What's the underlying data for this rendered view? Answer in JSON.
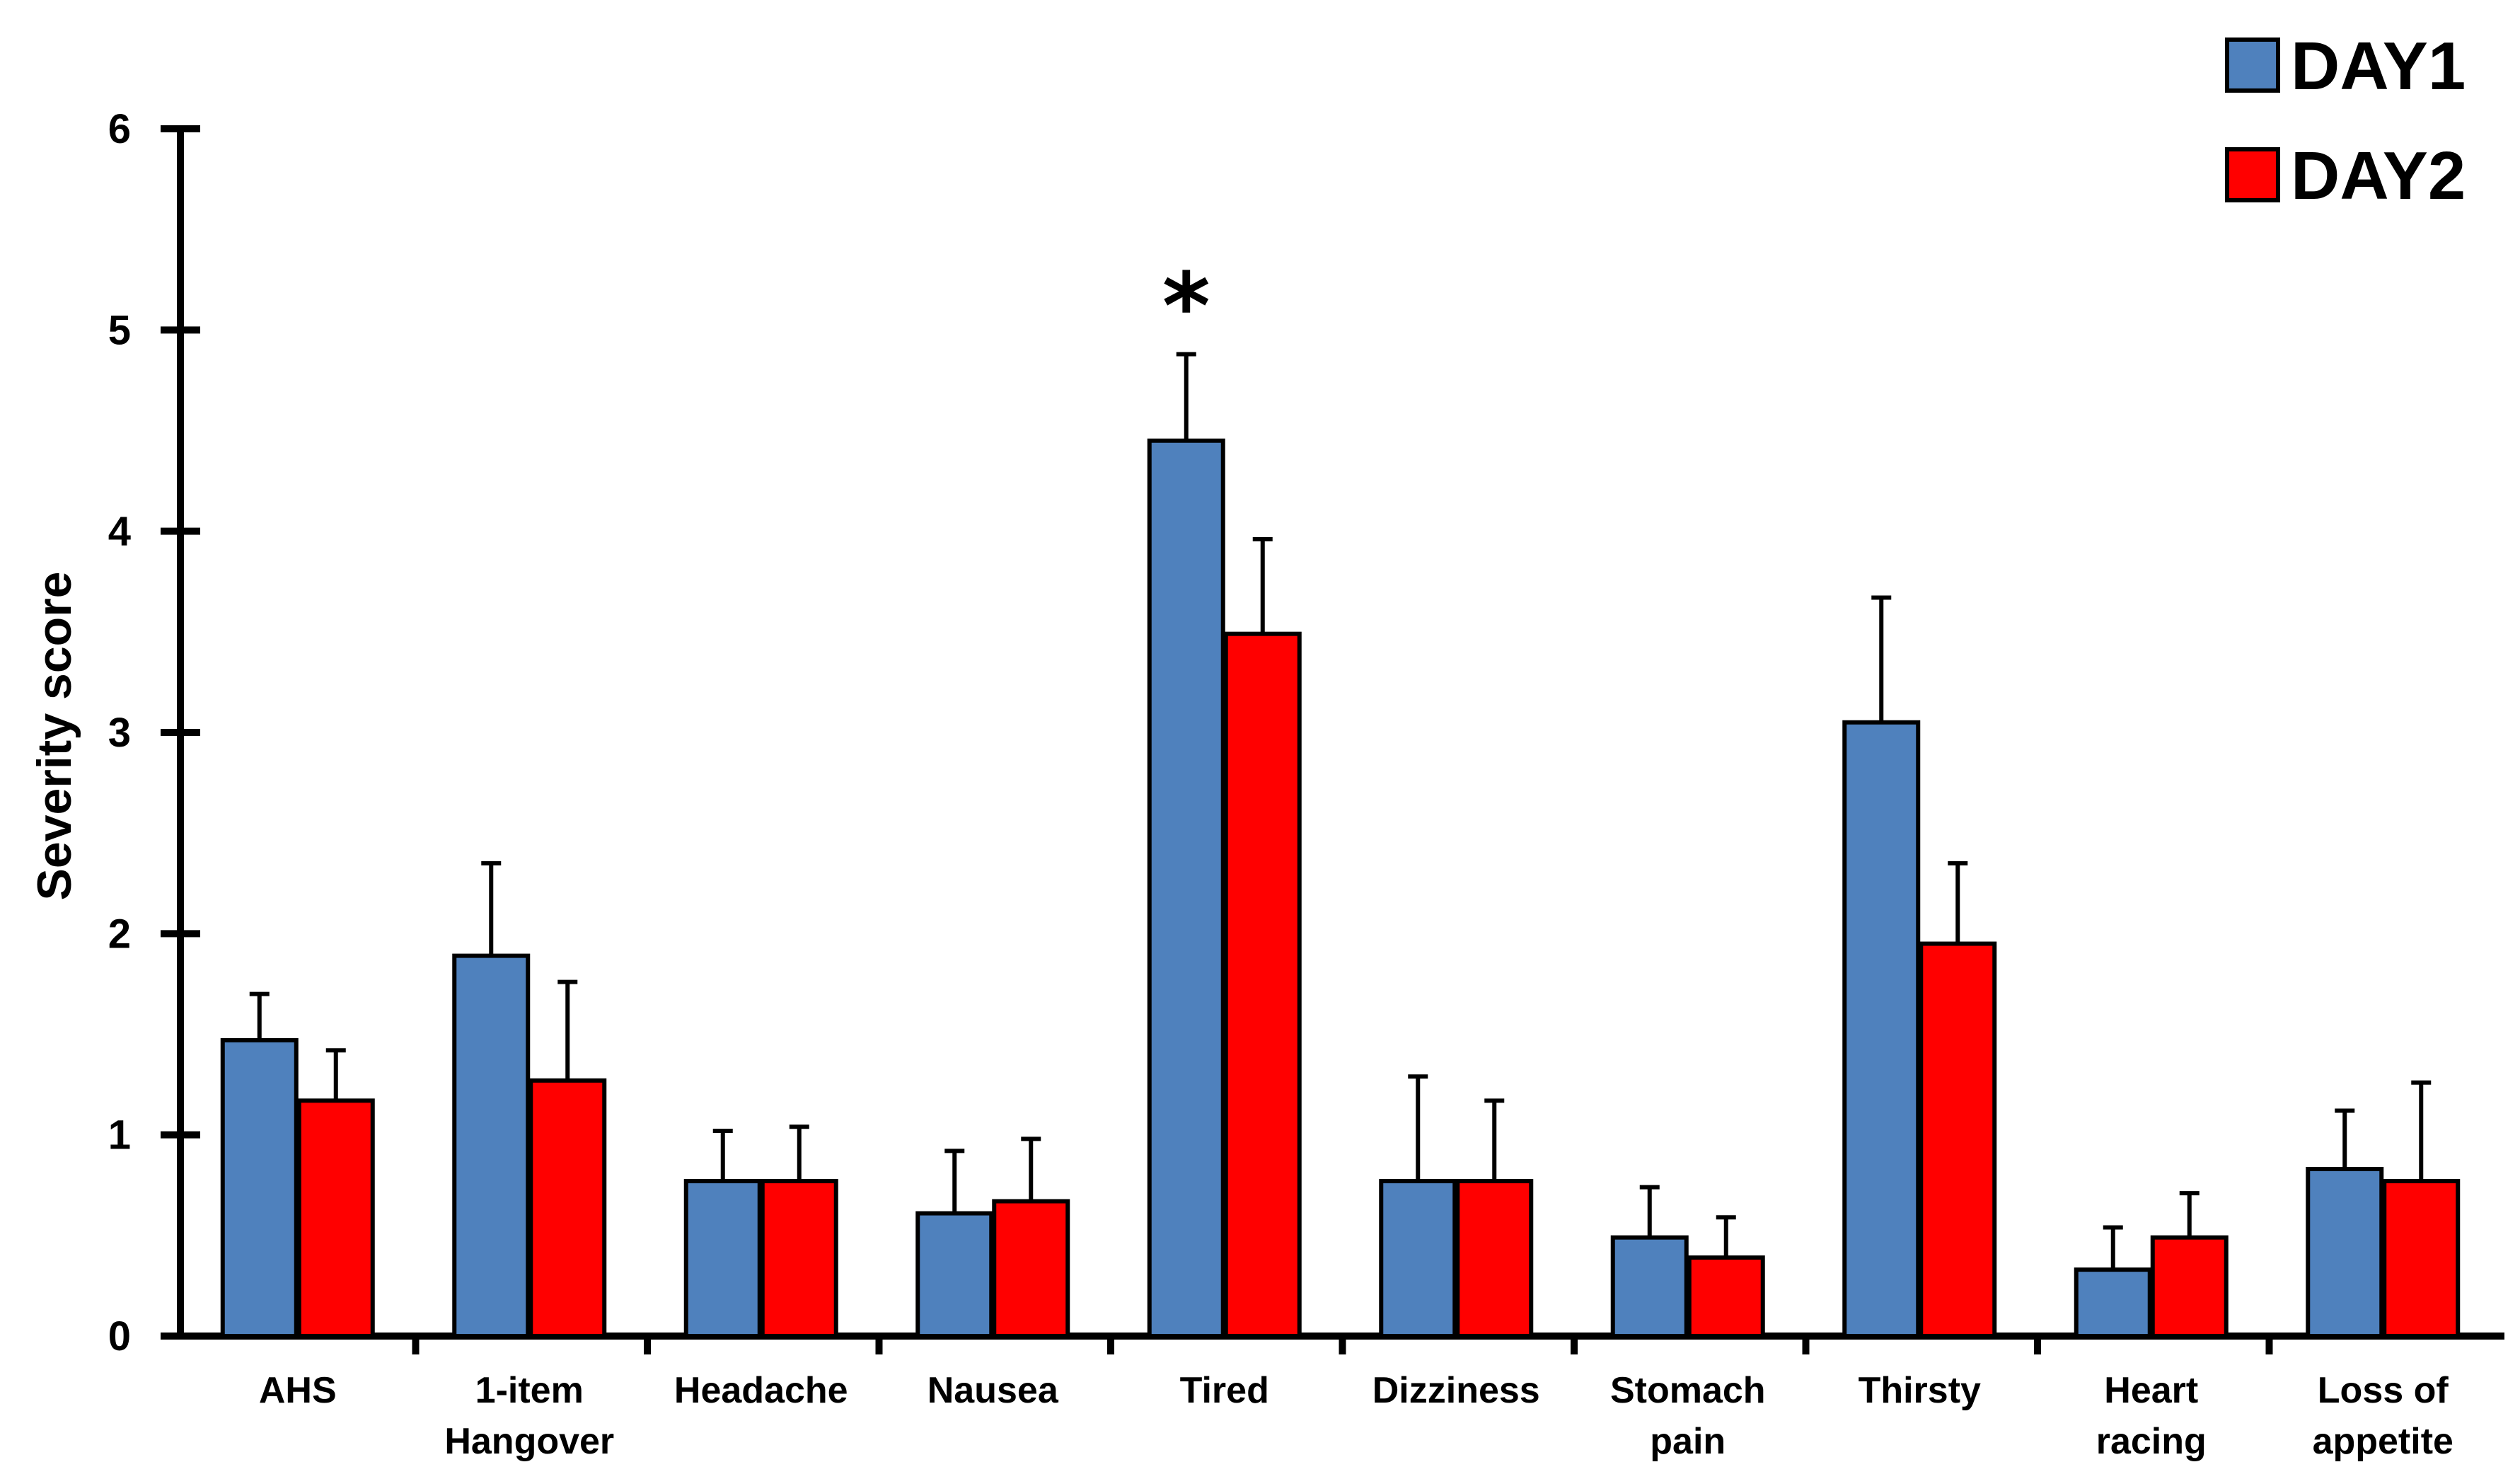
{
  "chart_data": {
    "type": "bar",
    "title": "",
    "xlabel": "",
    "ylabel": "Severity score",
    "ylim": [
      0,
      6
    ],
    "yticks": [
      "0",
      "1",
      "2",
      "3",
      "4",
      "5",
      "6"
    ],
    "grid": false,
    "legend_position": "top-right",
    "categories": [
      [
        "AHS"
      ],
      [
        "1-item",
        "Hangover"
      ],
      [
        "Headache"
      ],
      [
        "Nausea"
      ],
      [
        "Tired"
      ],
      [
        "Dizziness"
      ],
      [
        "Stomach",
        "pain"
      ],
      [
        "Thirsty"
      ],
      [
        "Heart",
        "racing"
      ],
      [
        "Loss of",
        "appetite"
      ]
    ],
    "series": [
      {
        "name": "DAY1",
        "color": "#4f81bd",
        "values": [
          1.47,
          1.89,
          0.77,
          0.61,
          4.45,
          0.77,
          0.49,
          3.05,
          0.33,
          0.83
        ],
        "errors": [
          0.23,
          0.46,
          0.25,
          0.31,
          0.43,
          0.52,
          0.25,
          0.62,
          0.21,
          0.29
        ]
      },
      {
        "name": "DAY2",
        "color": "#ff0000",
        "values": [
          1.17,
          1.27,
          0.77,
          0.67,
          3.49,
          0.77,
          0.39,
          1.95,
          0.49,
          0.77
        ],
        "errors": [
          0.25,
          0.49,
          0.27,
          0.31,
          0.47,
          0.4,
          0.2,
          0.4,
          0.22,
          0.49
        ]
      }
    ],
    "annotations": [
      {
        "text": "*",
        "category_index": 4,
        "y": 5.1
      }
    ]
  }
}
